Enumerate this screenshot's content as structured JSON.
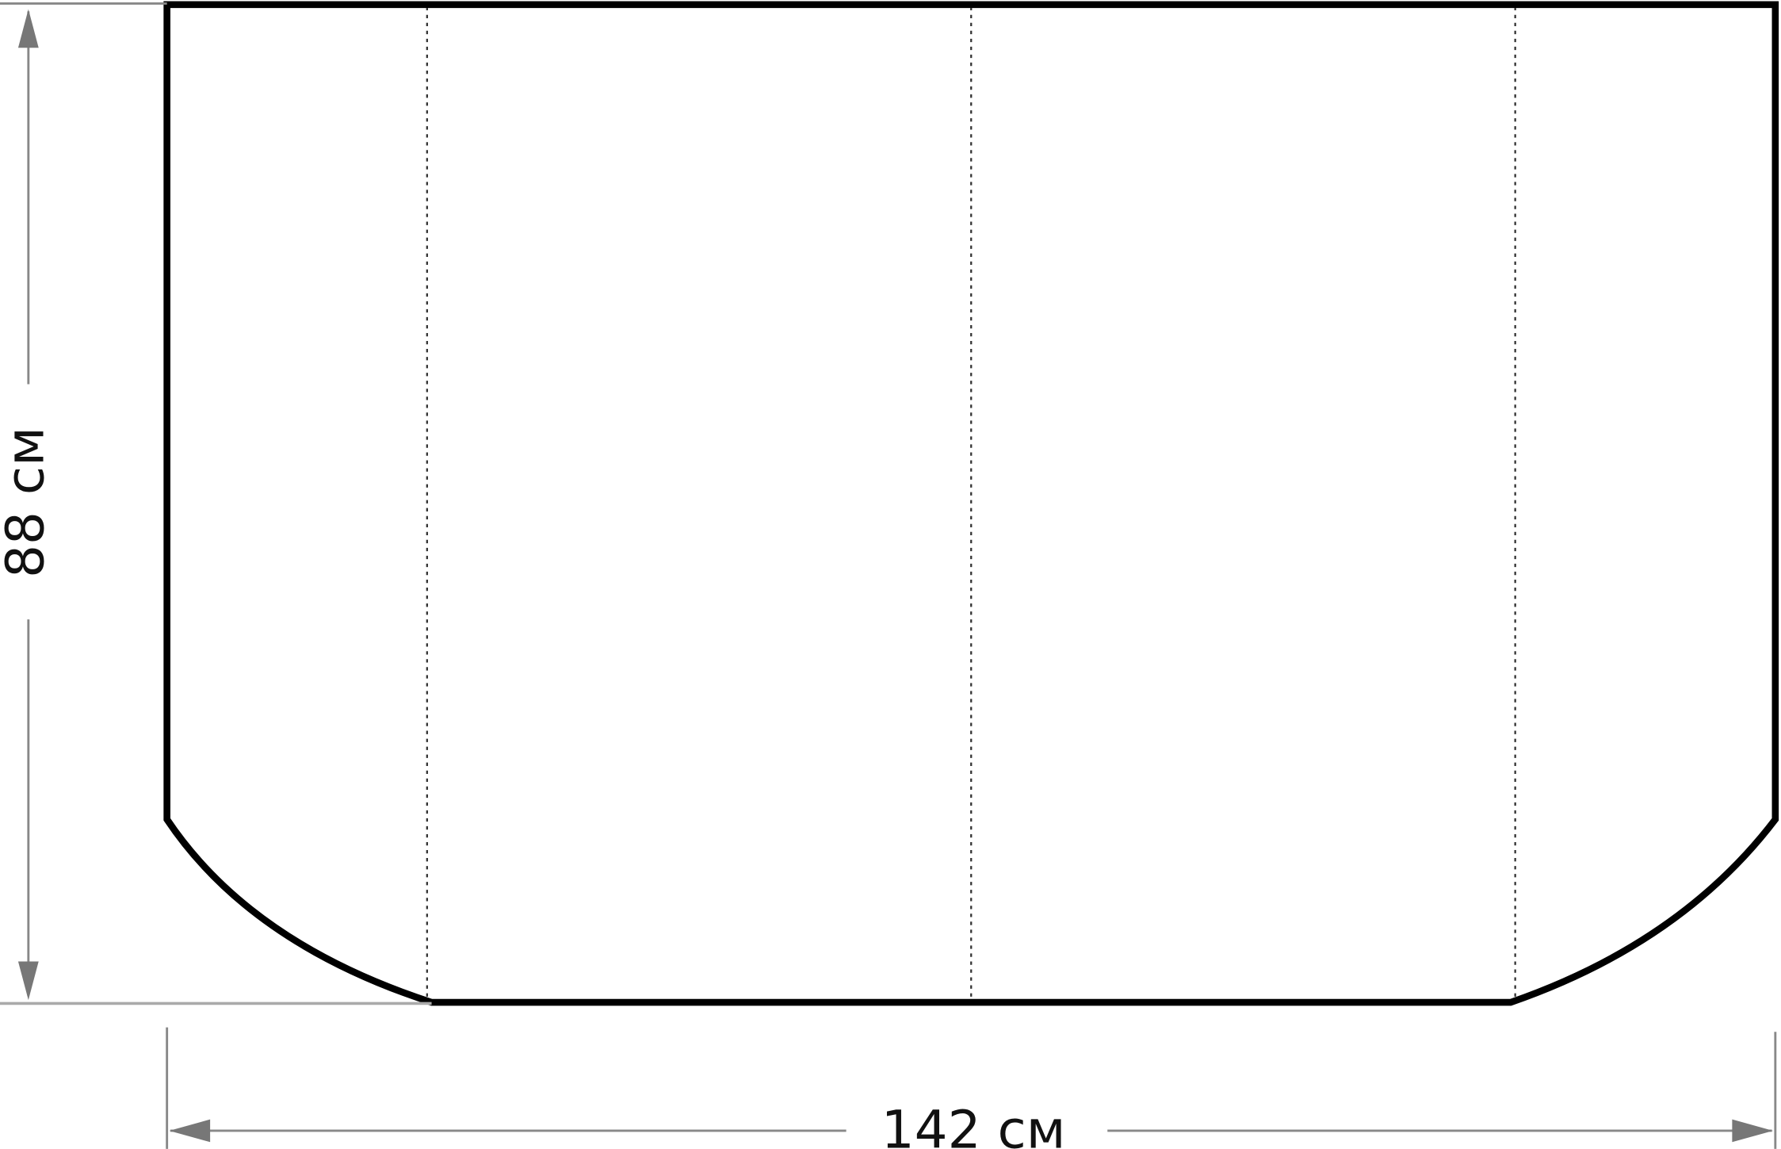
{
  "dimensions": {
    "height_label": "88 см",
    "width_label": "142 см"
  },
  "colors": {
    "outline": "#000000",
    "dimension_line": "#808080",
    "fold_line": "#333333"
  }
}
